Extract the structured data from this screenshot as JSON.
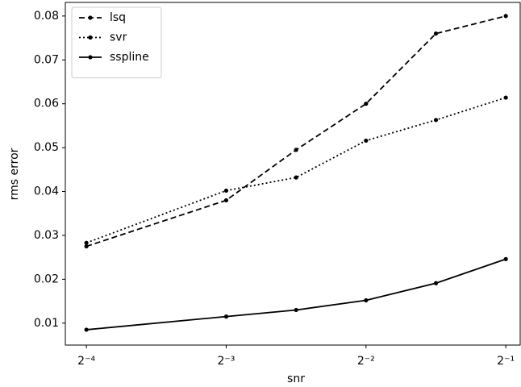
{
  "chart_data": {
    "type": "line",
    "xlabel": "snr",
    "ylabel": "rms error",
    "x": [
      0.0625,
      0.125,
      0.1768,
      0.25,
      0.3536,
      0.5
    ],
    "xscale": "log2",
    "xlim": [
      0.0563,
      0.537
    ],
    "xticks": [
      {
        "value": 0.0625,
        "label": "2⁻⁴"
      },
      {
        "value": 0.125,
        "label": "2⁻³"
      },
      {
        "value": 0.25,
        "label": "2⁻²"
      },
      {
        "value": 0.5,
        "label": "2⁻¹"
      }
    ],
    "ylim": [
      0.005,
      0.0831
    ],
    "yticks": [
      0.01,
      0.02,
      0.03,
      0.04,
      0.05,
      0.06,
      0.07,
      0.08
    ],
    "legend": "upper left",
    "grid": false,
    "series": [
      {
        "name": "lsq",
        "color": "#000000",
        "linestyle": "dashed",
        "values": [
          0.0275,
          0.038,
          0.0495,
          0.06,
          0.076,
          0.08
        ]
      },
      {
        "name": "svr",
        "color": "#000000",
        "linestyle": "dotted",
        "values": [
          0.0283,
          0.0402,
          0.0432,
          0.0516,
          0.0563,
          0.0614
        ]
      },
      {
        "name": "sspline",
        "color": "#000000",
        "linestyle": "solid",
        "values": [
          0.0085,
          0.0115,
          0.013,
          0.0152,
          0.0191,
          0.0246
        ]
      }
    ]
  }
}
